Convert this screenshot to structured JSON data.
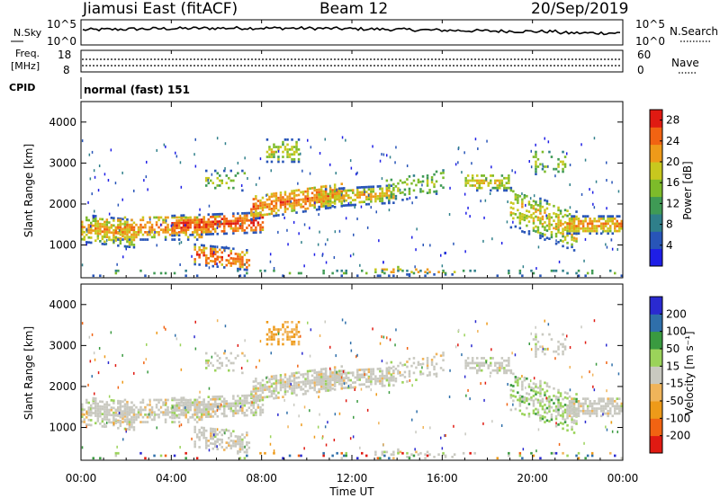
{
  "header": {
    "station": "Jiamusi East (fitACF)",
    "beam": "Beam 12",
    "date": "20/Sep/2019"
  },
  "noise_panel": {
    "left_label": "N.Sky",
    "left_ticks": [
      "10^5",
      "10^0"
    ],
    "right_label": "N.Search",
    "right_ticks": [
      "10^5",
      "10^0"
    ]
  },
  "freq_panel": {
    "left_label_line1": "Freq.",
    "left_label_line2": "[MHz]",
    "left_ticks": [
      "18",
      "8"
    ],
    "right_label": "Nave",
    "right_ticks": [
      "60",
      "0"
    ]
  },
  "cpid_panel": {
    "label": "CPID",
    "value": "normal (fast) 151"
  },
  "colors": {
    "power": [
      "#1e1ee6",
      "#2855b8",
      "#2f7f8a",
      "#3f9a55",
      "#7dbb2a",
      "#c8c81e",
      "#ee9a19",
      "#f16312",
      "#e01a12"
    ],
    "velocity": [
      "#e01a12",
      "#f16312",
      "#ee9a19",
      "#f0b45a",
      "#c9c9c0",
      "#9bd35a",
      "#3a9a40",
      "#2f6faa",
      "#2a2ad0"
    ]
  },
  "chart_data": [
    {
      "type": "heatmap",
      "name": "Power",
      "ylabel": "Slant Range [km]",
      "yticks": [
        1000,
        2000,
        3000,
        4000
      ],
      "ylim": [
        200,
        4500
      ],
      "xlim": [
        0,
        24
      ],
      "colorbar_label": "Power [dB]",
      "colorbar_ticks": [
        4,
        8,
        12,
        16,
        20,
        24,
        28
      ],
      "colorbar_range": [
        0,
        30
      ]
    },
    {
      "type": "heatmap",
      "name": "Velocity",
      "ylabel": "Slant Range [km]",
      "yticks": [
        1000,
        2000,
        3000,
        4000
      ],
      "ylim": [
        200,
        4500
      ],
      "xlim": [
        0,
        24
      ],
      "xlabel": "Time UT",
      "xticks": [
        "00:00",
        "04:00",
        "08:00",
        "12:00",
        "16:00",
        "20:00",
        "00:00"
      ],
      "colorbar_label": "Velocity [m s⁻¹]",
      "colorbar_ticks": [
        "200",
        "100",
        "50",
        "15",
        "-15",
        "-50",
        "-100",
        "-200"
      ]
    }
  ]
}
